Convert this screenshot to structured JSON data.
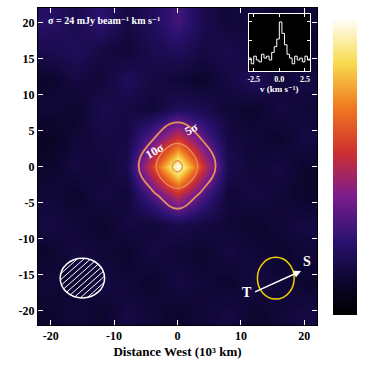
{
  "chart_data": [
    {
      "type": "heatmap",
      "x_label": "Distance West (10³ km)",
      "annotation": "σ = 24 mJy beam⁻¹ km s⁻¹",
      "x": [
        -20,
        -16,
        -12,
        -8,
        -4,
        0,
        4,
        8,
        12,
        16,
        20
      ],
      "y": [
        -20,
        -16,
        -12,
        -8,
        -4,
        0,
        4,
        8,
        12,
        16,
        20
      ],
      "z": [
        [
          10,
          20,
          10,
          30,
          20,
          10,
          20,
          30,
          10,
          20,
          30
        ],
        [
          20,
          10,
          30,
          20,
          10,
          30,
          20,
          10,
          30,
          20,
          10
        ],
        [
          10,
          30,
          20,
          10,
          30,
          20,
          10,
          30,
          20,
          10,
          20
        ],
        [
          30,
          20,
          10,
          30,
          20,
          40,
          30,
          20,
          10,
          20,
          30
        ],
        [
          20,
          10,
          30,
          20,
          100,
          190,
          100,
          20,
          30,
          20,
          10
        ],
        [
          10,
          30,
          20,
          40,
          210,
          400,
          200,
          40,
          20,
          30,
          10
        ],
        [
          0,
          20,
          30,
          30,
          110,
          200,
          110,
          30,
          20,
          10,
          30
        ],
        [
          20,
          10,
          40,
          30,
          20,
          50,
          40,
          20,
          10,
          30,
          20
        ],
        [
          10,
          30,
          20,
          50,
          30,
          20,
          10,
          30,
          50,
          20,
          30
        ],
        [
          40,
          50,
          30,
          20,
          40,
          50,
          30,
          40,
          20,
          30,
          10
        ],
        [
          60,
          40,
          70,
          30,
          50,
          90,
          40,
          20,
          30,
          10,
          20
        ]
      ],
      "zlim": [
        -40,
        400
      ],
      "contours": [
        {
          "level": 120,
          "label": "5σ"
        },
        {
          "level": 240,
          "label": "10σ"
        },
        {
          "level": 360
        }
      ],
      "xlim": [
        -22,
        22
      ],
      "ylim": [
        -22,
        22
      ],
      "xticks": [
        -20,
        -10,
        0,
        10,
        20
      ],
      "yticks": [
        -20,
        -15,
        -10,
        -5,
        0,
        5,
        10,
        15,
        20
      ],
      "beam": {
        "x": -15,
        "y": -15.5,
        "width": 7,
        "height": 5.5
      },
      "body": {
        "x": 15.5,
        "y": -15.5,
        "r": 2.9
      },
      "direction_arrow": {
        "from": [
          12,
          -17.5
        ],
        "to": [
          19.5,
          -14.5
        ],
        "labels": [
          "T",
          "S"
        ]
      }
    },
    {
      "type": "line",
      "x_label": "v (km s⁻¹)",
      "x": [
        -3,
        -2.75,
        -2.5,
        -2.25,
        -2,
        -1.75,
        -1.5,
        -1.25,
        -1,
        -0.75,
        -0.5,
        -0.25,
        0,
        0.25,
        0.5,
        0.75,
        1,
        1.25,
        1.5,
        1.75,
        2,
        2.25,
        2.5,
        2.75,
        3
      ],
      "values": [
        0.05,
        -0.1,
        0.1,
        0.0,
        -0.05,
        0.15,
        0.05,
        0.1,
        0.0,
        0.2,
        0.35,
        0.55,
        1.0,
        0.7,
        0.4,
        0.15,
        0.05,
        -0.1,
        0.1,
        0.0,
        0.05,
        -0.05,
        0.1,
        0.0,
        0.05
      ],
      "color": "#ffffff",
      "xlim": [
        -3,
        3
      ],
      "ylim": [
        -0.3,
        1.2
      ],
      "xticks": [
        {
          "value": -2.5,
          "label": "-2.5"
        },
        {
          "value": 0,
          "label": "0.0"
        },
        {
          "value": 2.5,
          "label": "2.5"
        }
      ],
      "tick_labels": "x"
    }
  ]
}
